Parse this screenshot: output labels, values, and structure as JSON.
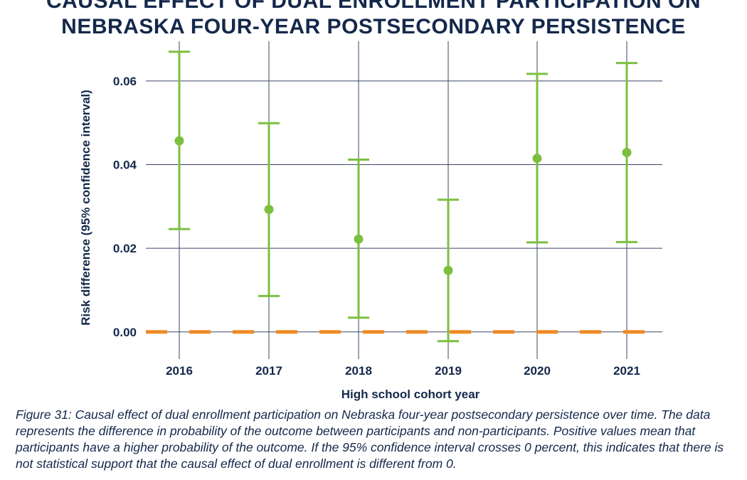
{
  "title_lines": [
    "CAUSAL EFFECT OF DUAL ENROLLMENT PARTICIPATION ON",
    "NEBRASKA FOUR-YEAR POSTSECONDARY PERSISTENCE"
  ],
  "caption": "Figure 31: Causal effect of dual enrollment participation on Nebraska four-year postsecondary persistence over time. The data represents the difference in probability of the outcome between participants and non-participants. Positive values mean that participants have a higher probability of the outcome. If the 95% confidence interval crosses 0 percent, this indicates that there is not statistical support that the causal effect of dual enrollment is different from 0.",
  "chart_data": {
    "type": "scatter",
    "title": "CAUSAL EFFECT OF DUAL ENROLLMENT PARTICIPATION ON NEBRASKA FOUR-YEAR POSTSECONDARY PERSISTENCE",
    "xlabel": "High school cohort year",
    "ylabel": "Risk difference (95% confidence interval)",
    "categories": [
      "2016",
      "2017",
      "2018",
      "2019",
      "2020",
      "2021"
    ],
    "estimate": [
      0.0457,
      0.0293,
      0.0222,
      0.0147,
      0.0415,
      0.0429
    ],
    "ci_low": [
      0.0246,
      0.0086,
      0.0034,
      -0.0022,
      0.0214,
      0.0215
    ],
    "ci_high": [
      0.067,
      0.0499,
      0.0412,
      0.0316,
      0.0617,
      0.0643
    ],
    "y_ticks": [
      "0.00",
      "0.02",
      "0.04",
      "0.06"
    ],
    "y_tick_values": [
      0,
      0.02,
      0.04,
      0.06
    ],
    "ylim": [
      -0.0065,
      0.0695
    ],
    "reference_line": 0,
    "grid": true,
    "legend": "none",
    "colors": {
      "points": "#7cbf3f",
      "reference_line": "#f08a24",
      "grid": "#3a4566",
      "text": "#14284b"
    }
  }
}
